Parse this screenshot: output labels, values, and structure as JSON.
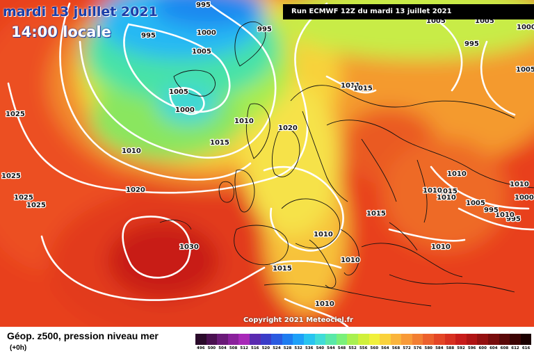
{
  "title": {
    "date": "mardi 13 juillet 2021",
    "time": "14:00 locale"
  },
  "run_info": "Run ECMWF 12Z du mardi 13 juillet 2021",
  "copyright": "Copyright 2021 Meteociel.fr",
  "legend": {
    "title": "Géop. z500, pression niveau mer",
    "subtitle": "(+0h)",
    "scale_values": [
      "496",
      "500",
      "504",
      "508",
      "512",
      "516",
      "520",
      "524",
      "528",
      "532",
      "536",
      "540",
      "544",
      "548",
      "552",
      "556",
      "560",
      "564",
      "568",
      "572",
      "576",
      "580",
      "584",
      "588",
      "592",
      "596",
      "600",
      "604",
      "608",
      "612",
      "616"
    ],
    "scale_colors": [
      "#2a0a2a",
      "#4a1050",
      "#6a1a78",
      "#8a209c",
      "#a828b8",
      "#5a2ab0",
      "#3a3cc8",
      "#2a5ae0",
      "#1e7cf0",
      "#1ea0f8",
      "#28c4f0",
      "#40dcd8",
      "#5ae8a8",
      "#7af07a",
      "#a8f050",
      "#d0f03c",
      "#f0f03c",
      "#fad23c",
      "#fab43c",
      "#f89a38",
      "#f27e32",
      "#ec602c",
      "#e44626",
      "#d83020",
      "#c81c1a",
      "#b01414",
      "#941010",
      "#780c0c",
      "#5a0808",
      "#3c0404",
      "#1a0000"
    ]
  },
  "isobar_labels": [
    "995",
    "995",
    "995",
    "1000",
    "1005",
    "1005",
    "1000",
    "1010",
    "1015",
    "1010",
    "1020",
    "1025",
    "1025",
    "1025",
    "1020",
    "1025",
    "1030",
    "1015",
    "1010",
    "1010",
    "1010",
    "1005",
    "1005",
    "1000",
    "995",
    "1005",
    "1011",
    "1015",
    "1010",
    "1015",
    "1015",
    "1010",
    "1010",
    "1010",
    "1000",
    "995",
    "1010",
    "1010",
    "1005",
    "995"
  ]
}
